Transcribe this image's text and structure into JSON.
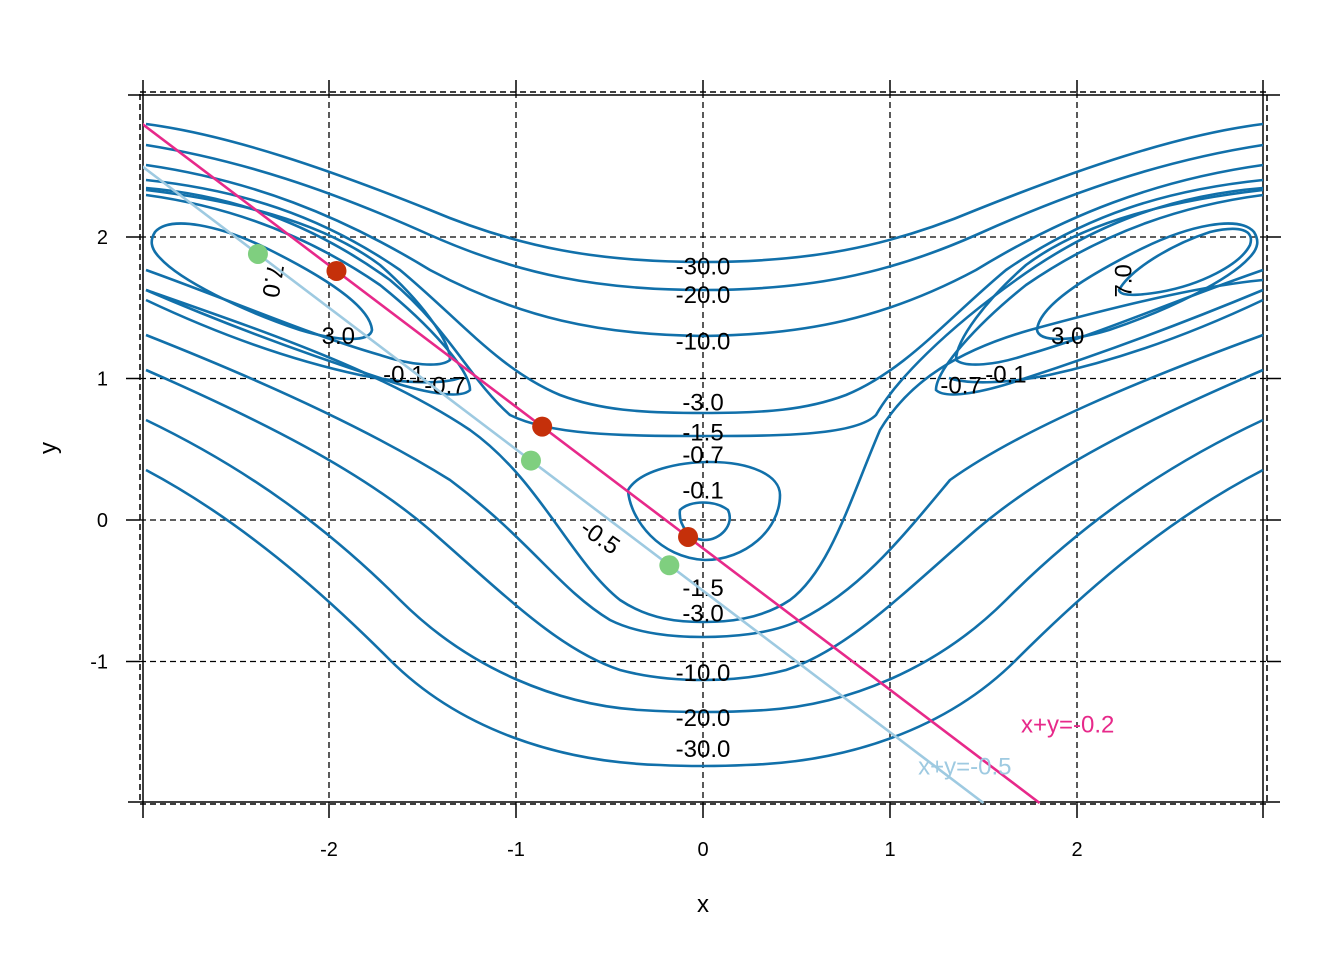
{
  "chart_data": {
    "type": "contour",
    "title": "",
    "xlabel": "x",
    "ylabel": "y",
    "xlim": [
      -3.0,
      3.0
    ],
    "ylim": [
      -2.0,
      3.0
    ],
    "x_ticks": [
      "-2",
      "-1",
      "0",
      "1",
      "2"
    ],
    "y_ticks": [
      "-1",
      "0",
      "1",
      "2"
    ],
    "grid": true,
    "contour_color": "#1170AA",
    "contour_labels": [
      {
        "text": "-30.0",
        "x": 0.0,
        "y": 1.79
      },
      {
        "text": "-20.0",
        "x": 0.0,
        "y": 1.59
      },
      {
        "text": "-10.0",
        "x": 0.0,
        "y": 1.26
      },
      {
        "text": "-3.0",
        "x": 0.0,
        "y": 0.83
      },
      {
        "text": "-1.5",
        "x": 0.0,
        "y": 0.62
      },
      {
        "text": "-0.7",
        "x": 0.0,
        "y": 0.46
      },
      {
        "text": "-0.1",
        "x": 0.0,
        "y": 0.21
      },
      {
        "text": "-0.5",
        "x": -0.55,
        "y": -0.12,
        "rotate": 35
      },
      {
        "text": "-1.5",
        "x": 0.0,
        "y": -0.48
      },
      {
        "text": "-3.0",
        "x": 0.0,
        "y": -0.66
      },
      {
        "text": "-10.0",
        "x": 0.0,
        "y": -1.08
      },
      {
        "text": "-20.0",
        "x": 0.0,
        "y": -1.4
      },
      {
        "text": "-30.0",
        "x": 0.0,
        "y": -1.62
      },
      {
        "text": "3.0",
        "x": -1.95,
        "y": 1.3
      },
      {
        "text": "-0.1",
        "x": -1.6,
        "y": 1.03
      },
      {
        "text": "-0.7",
        "x": -1.38,
        "y": 0.95
      },
      {
        "text": "7.0",
        "x": -2.3,
        "y": 1.69,
        "rotate": 100
      },
      {
        "text": "3.0",
        "x": 1.95,
        "y": 1.3
      },
      {
        "text": "-0.1",
        "x": 1.62,
        "y": 1.03
      },
      {
        "text": "-0.7",
        "x": 1.38,
        "y": 0.95
      },
      {
        "text": "7.0",
        "x": 2.25,
        "y": 1.69,
        "rotate": -90
      }
    ],
    "series": [
      {
        "name": "x+y=-0.2",
        "type": "line",
        "color": "#E7298A",
        "x": [
          -3.0,
          1.8
        ],
        "y": [
          2.8,
          -2.0
        ],
        "label_pos": [
          1.95,
          -1.5
        ]
      },
      {
        "name": "x+y=-0.5",
        "type": "line",
        "color": "#9ECAE1",
        "x": [
          -3.0,
          1.5
        ],
        "y": [
          2.5,
          -2.0
        ],
        "label_pos": [
          1.4,
          -1.8
        ]
      }
    ],
    "points": [
      {
        "series": "x+y=-0.2",
        "color": "#C5300A",
        "x": [
          -1.96,
          -0.86,
          -0.08
        ],
        "y": [
          1.76,
          0.66,
          -0.12
        ]
      },
      {
        "series": "x+y=-0.5",
        "color": "#7FCF7F",
        "x": [
          -2.38,
          -0.92,
          -0.18
        ],
        "y": [
          1.88,
          0.42,
          -0.32
        ]
      }
    ]
  }
}
